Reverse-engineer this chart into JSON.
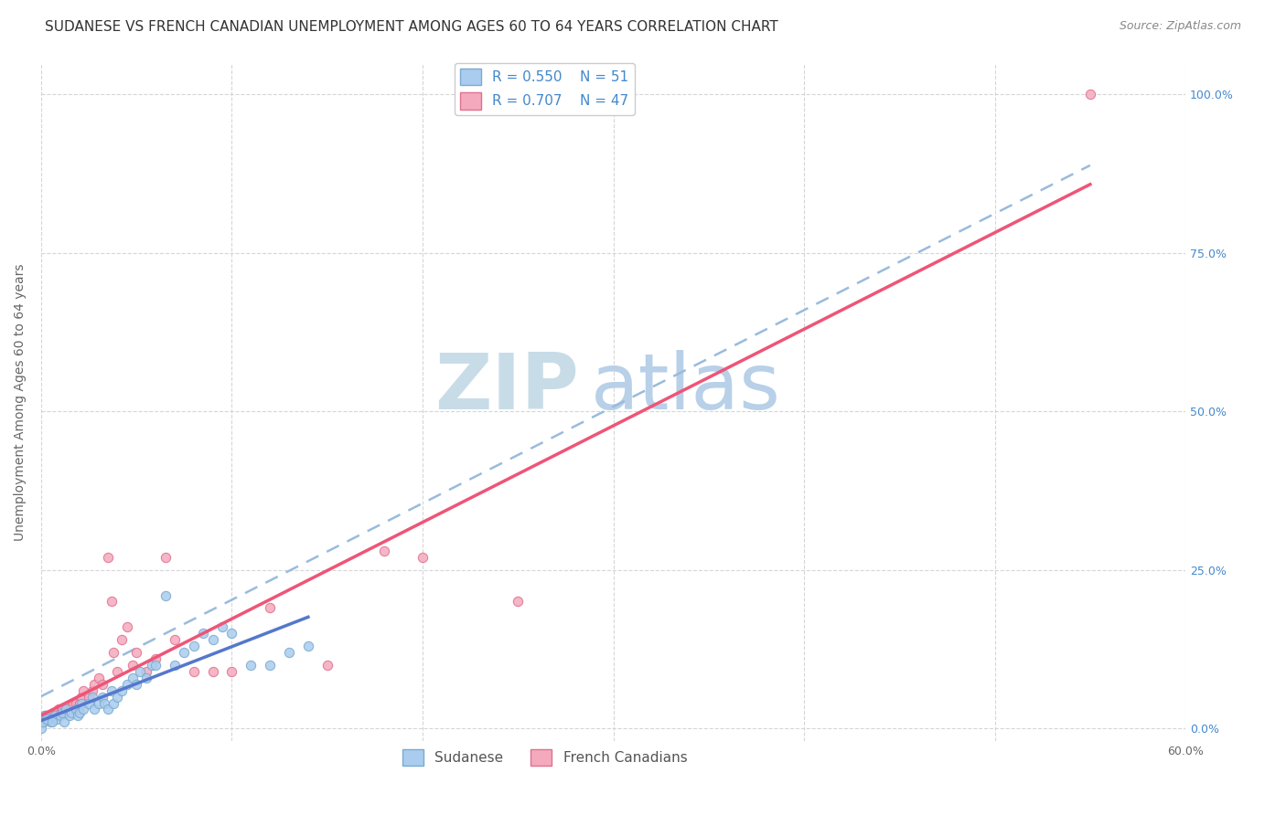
{
  "title": "SUDANESE VS FRENCH CANADIAN UNEMPLOYMENT AMONG AGES 60 TO 64 YEARS CORRELATION CHART",
  "source": "Source: ZipAtlas.com",
  "ylabel_label": "Unemployment Among Ages 60 to 64 years",
  "xlim": [
    0.0,
    0.6
  ],
  "ylim": [
    -0.02,
    1.05
  ],
  "x_tick_positions": [
    0.0,
    0.1,
    0.2,
    0.3,
    0.4,
    0.5,
    0.6
  ],
  "x_tick_labels": [
    "0.0%",
    "",
    "",
    "",
    "",
    "",
    "60.0%"
  ],
  "y_tick_labels_right": [
    "0.0%",
    "25.0%",
    "50.0%",
    "75.0%",
    "100.0%"
  ],
  "y_ticks_right": [
    0.0,
    0.25,
    0.5,
    0.75,
    1.0
  ],
  "sudanese_color": "#aaccee",
  "french_color": "#f4aabc",
  "sudanese_edge": "#7aaad0",
  "french_edge": "#e07090",
  "line_sudanese": "#5577cc",
  "line_french": "#ee5577",
  "line_dashed_color": "#99bbdd",
  "R_sudanese": 0.55,
  "N_sudanese": 51,
  "R_french": 0.707,
  "N_french": 47,
  "sudanese_x": [
    0.0,
    0.002,
    0.004,
    0.005,
    0.007,
    0.008,
    0.01,
    0.011,
    0.012,
    0.013,
    0.015,
    0.016,
    0.018,
    0.019,
    0.02,
    0.021,
    0.022,
    0.025,
    0.027,
    0.028,
    0.03,
    0.032,
    0.033,
    0.035,
    0.037,
    0.038,
    0.04,
    0.042,
    0.045,
    0.048,
    0.05,
    0.052,
    0.055,
    0.058,
    0.06,
    0.065,
    0.07,
    0.075,
    0.08,
    0.085,
    0.09,
    0.095,
    0.1,
    0.11,
    0.12,
    0.13,
    0.14,
    0.0,
    0.001,
    0.003,
    0.006
  ],
  "sudanese_y": [
    0.01,
    0.02,
    0.015,
    0.01,
    0.02,
    0.015,
    0.02,
    0.025,
    0.01,
    0.03,
    0.02,
    0.025,
    0.03,
    0.02,
    0.025,
    0.04,
    0.03,
    0.04,
    0.05,
    0.03,
    0.04,
    0.05,
    0.04,
    0.03,
    0.06,
    0.04,
    0.05,
    0.06,
    0.07,
    0.08,
    0.07,
    0.09,
    0.08,
    0.1,
    0.1,
    0.21,
    0.1,
    0.12,
    0.13,
    0.15,
    0.14,
    0.16,
    0.15,
    0.1,
    0.1,
    0.12,
    0.13,
    0.0,
    0.01,
    0.015,
    0.01
  ],
  "french_x": [
    0.0,
    0.001,
    0.002,
    0.003,
    0.005,
    0.006,
    0.007,
    0.008,
    0.009,
    0.01,
    0.011,
    0.012,
    0.013,
    0.015,
    0.016,
    0.017,
    0.018,
    0.019,
    0.02,
    0.021,
    0.022,
    0.025,
    0.027,
    0.028,
    0.03,
    0.032,
    0.035,
    0.037,
    0.038,
    0.04,
    0.042,
    0.045,
    0.048,
    0.05,
    0.055,
    0.06,
    0.065,
    0.07,
    0.08,
    0.09,
    0.1,
    0.12,
    0.15,
    0.18,
    0.2,
    0.25,
    0.55
  ],
  "french_y": [
    0.01,
    0.01,
    0.02,
    0.02,
    0.015,
    0.02,
    0.02,
    0.025,
    0.03,
    0.025,
    0.03,
    0.025,
    0.03,
    0.03,
    0.035,
    0.04,
    0.04,
    0.03,
    0.04,
    0.05,
    0.06,
    0.05,
    0.06,
    0.07,
    0.08,
    0.07,
    0.27,
    0.2,
    0.12,
    0.09,
    0.14,
    0.16,
    0.1,
    0.12,
    0.09,
    0.11,
    0.27,
    0.14,
    0.09,
    0.09,
    0.09,
    0.19,
    0.1,
    0.28,
    0.27,
    0.2,
    1.0
  ],
  "background_color": "#ffffff",
  "grid_color": "#cccccc",
  "title_fontsize": 11,
  "axis_label_fontsize": 10,
  "tick_fontsize": 9,
  "zip_color": "#c8dce8",
  "atlas_color": "#b8d0e8",
  "watermark_fontsize": 62
}
